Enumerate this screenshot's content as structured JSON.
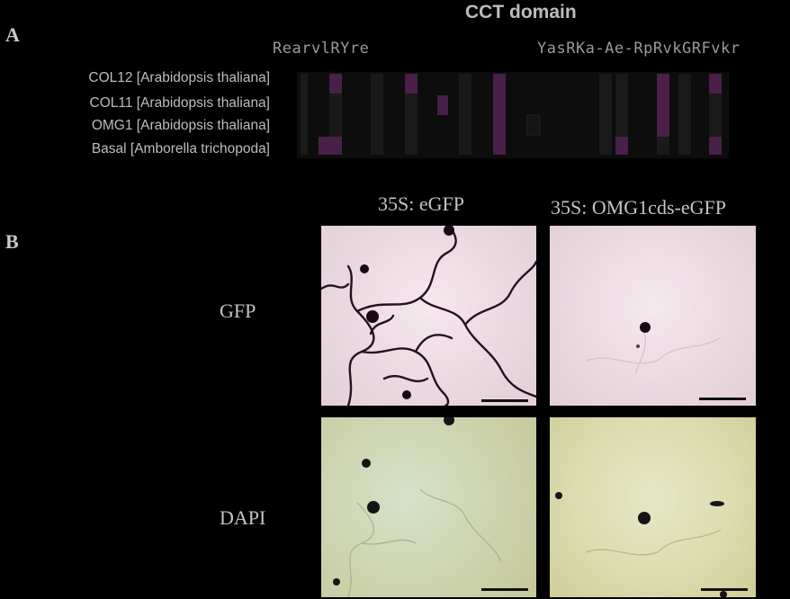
{
  "panel_a": {
    "letter": "A",
    "title": "CCT domain",
    "consensus_left": "RearvlRYre",
    "consensus_right": "YasRKa-Ae-RpRvkGRFvkr",
    "sequences": [
      "COL12 [Arabidopsis thaliana]",
      "COL11 [Arabidopsis thaliana]",
      "OMG1 [Arabidopsis thaliana]",
      "Basal [Amborella trichopoda]"
    ]
  },
  "panel_b": {
    "letter": "B",
    "columns": [
      "35S: eGFP",
      "35S: OMG1cds-eGFP"
    ],
    "rows": [
      "GFP",
      "DAPI"
    ]
  },
  "colors": {
    "background": "#000000",
    "highlight": "#4a1f4a",
    "gfp_tint": "#ead9e0",
    "dapi_tint": "#cfd6b3"
  }
}
